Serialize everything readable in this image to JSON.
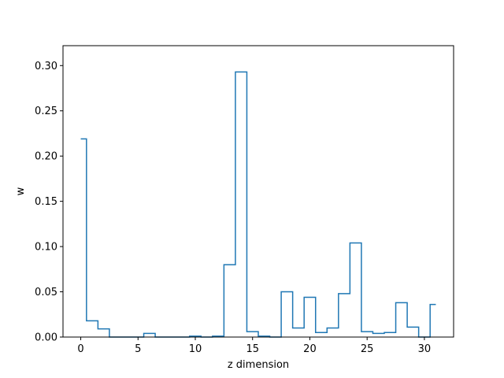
{
  "chart_data": {
    "type": "line",
    "drawstyle": "steps-mid",
    "title": "",
    "xlabel": "z dimension",
    "ylabel": "w",
    "xlim": [
      -1.55,
      32.55
    ],
    "ylim": [
      0.0,
      0.322
    ],
    "x_ticks": [
      0,
      5,
      10,
      15,
      20,
      25,
      30
    ],
    "y_ticks": [
      0.0,
      0.05,
      0.1,
      0.15,
      0.2,
      0.25,
      0.3
    ],
    "y_tick_labels": [
      "0.00",
      "0.05",
      "0.10",
      "0.15",
      "0.20",
      "0.25",
      "0.30"
    ],
    "grid": false,
    "color": "#1f77b4",
    "series": [
      {
        "x": [
          0,
          1,
          2,
          3,
          4,
          5,
          6,
          7,
          8,
          9,
          10,
          11,
          12,
          13,
          14,
          15,
          16,
          17,
          18,
          19,
          20,
          21,
          22,
          23,
          24,
          25,
          26,
          27,
          28,
          29,
          30,
          31
        ],
        "values": [
          0.219,
          0.018,
          0.009,
          0.0,
          0.0,
          0.0,
          0.004,
          0.0,
          0.0,
          0.0,
          0.001,
          0.0,
          0.001,
          0.08,
          0.293,
          0.006,
          0.001,
          0.0,
          0.05,
          0.01,
          0.044,
          0.005,
          0.01,
          0.048,
          0.104,
          0.006,
          0.004,
          0.005,
          0.038,
          0.011,
          0.0,
          0.036
        ]
      }
    ]
  }
}
